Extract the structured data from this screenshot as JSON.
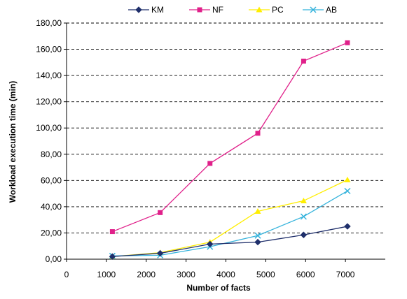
{
  "chart_data": {
    "type": "line",
    "xlabel": "Number of facts",
    "ylabel": "Workload execution time (min)",
    "xlim": [
      0,
      8000
    ],
    "ylim": [
      0,
      180
    ],
    "x_ticks": [
      0,
      1000,
      2000,
      3000,
      4000,
      5000,
      6000,
      7000
    ],
    "x_tick_labels": [
      "0",
      "1000",
      "2000",
      "3000",
      "4000",
      "5000",
      "6000",
      "7000"
    ],
    "y_ticks": [
      0,
      20,
      40,
      60,
      80,
      100,
      120,
      140,
      160,
      180
    ],
    "y_tick_labels": [
      "0,00",
      "20,00",
      "40,00",
      "60,00",
      "80,00",
      "100,00",
      "120,00",
      "140,00",
      "160,00",
      "180,00"
    ],
    "grid": "horizontal dashed",
    "legend_position": "top",
    "x": [
      1150,
      2350,
      3600,
      4800,
      5950,
      7050
    ],
    "series": [
      {
        "name": "KM",
        "color": "#1f2f6b",
        "marker": "diamond",
        "values": [
          2.0,
          4.5,
          11.5,
          13.0,
          18.5,
          25.0
        ]
      },
      {
        "name": "NF",
        "color": "#e0208a",
        "marker": "square",
        "values": [
          21.0,
          35.5,
          73.0,
          96.0,
          151.0,
          165.0
        ]
      },
      {
        "name": "PC",
        "color": "#ffee00",
        "marker": "triangle",
        "values": [
          2.0,
          5.0,
          13.0,
          36.5,
          44.5,
          60.5
        ]
      },
      {
        "name": "AB",
        "color": "#35b3dc",
        "marker": "x",
        "values": [
          2.5,
          3.0,
          9.5,
          18.0,
          32.5,
          52.0
        ]
      }
    ]
  }
}
